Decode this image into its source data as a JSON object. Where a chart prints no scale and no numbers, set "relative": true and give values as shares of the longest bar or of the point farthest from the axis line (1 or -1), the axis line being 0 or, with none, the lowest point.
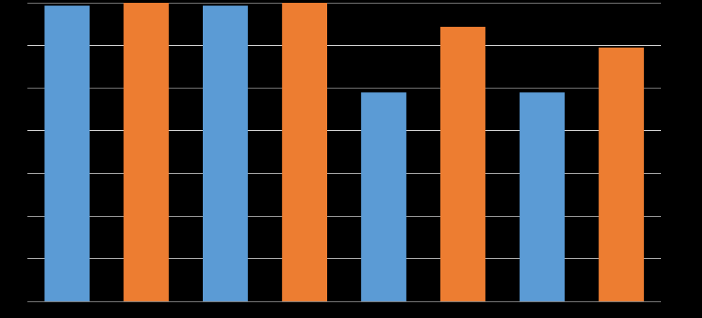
{
  "chart_data": {
    "type": "bar",
    "relative": true,
    "categories": [
      null,
      null,
      null,
      null
    ],
    "grid": "y",
    "legend": false,
    "series": [
      {
        "color": "#5b9bd5",
        "values": [
          0.99,
          0.99,
          0.7,
          0.7
        ]
      },
      {
        "color": "#ed7d31",
        "values": [
          1,
          1,
          0.92,
          0.85
        ]
      }
    ]
  }
}
